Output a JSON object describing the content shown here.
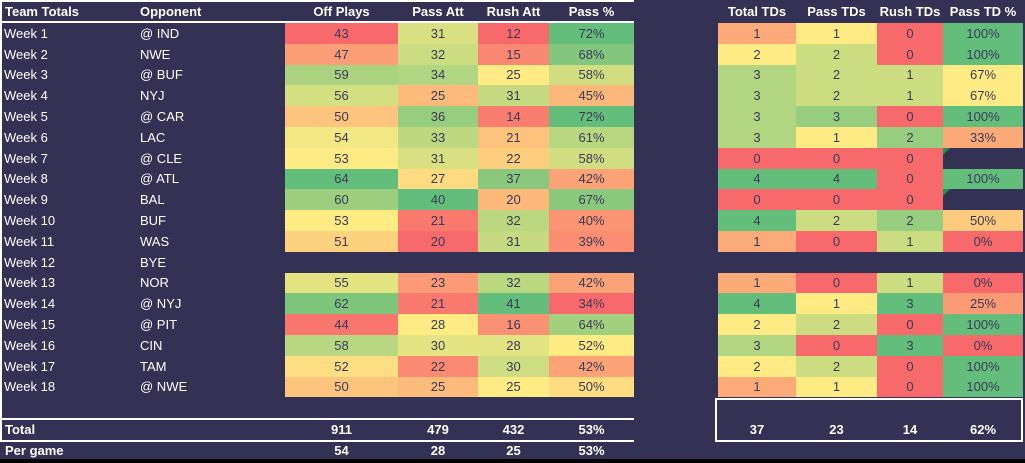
{
  "colors": {
    "background": "#333154",
    "scale_min_red": "#F8696B",
    "scale_mid_yellow": "#FFEB84",
    "scale_max_green": "#63BE7B",
    "cell_text": "#3A3A58",
    "header_text": "#FFFFFF",
    "table_border": "#FFFFFF",
    "error_flag_green": "#23934C",
    "bottom_bar": "#000000"
  },
  "left_table": {
    "header": {
      "week": "Team Totals",
      "opponent": "Opponent",
      "cols": [
        "Off Plays",
        "Pass Att",
        "Rush Att",
        "Pass %"
      ]
    },
    "formats": [
      "int",
      "int",
      "int",
      "pct"
    ],
    "rows": [
      {
        "week": "Week 1",
        "opponent": "@ IND",
        "values": [
          43,
          31,
          12,
          72
        ]
      },
      {
        "week": "Week 2",
        "opponent": "NWE",
        "values": [
          47,
          32,
          15,
          68
        ]
      },
      {
        "week": "Week 3",
        "opponent": "@ BUF",
        "values": [
          59,
          34,
          25,
          58
        ]
      },
      {
        "week": "Week 4",
        "opponent": "NYJ",
        "values": [
          56,
          25,
          31,
          45
        ]
      },
      {
        "week": "Week 5",
        "opponent": "@ CAR",
        "values": [
          50,
          36,
          14,
          72
        ]
      },
      {
        "week": "Week 6",
        "opponent": "LAC",
        "values": [
          54,
          33,
          21,
          61
        ]
      },
      {
        "week": "Week 7",
        "opponent": "@ CLE",
        "values": [
          53,
          31,
          22,
          58
        ]
      },
      {
        "week": "Week 8",
        "opponent": "@ ATL",
        "values": [
          64,
          27,
          37,
          42
        ]
      },
      {
        "week": "Week 9",
        "opponent": "BAL",
        "values": [
          60,
          40,
          20,
          67
        ]
      },
      {
        "week": "Week 10",
        "opponent": "BUF",
        "values": [
          53,
          21,
          32,
          40
        ]
      },
      {
        "week": "Week 11",
        "opponent": "WAS",
        "values": [
          51,
          20,
          31,
          39
        ]
      },
      {
        "week": "Week 12",
        "opponent": "BYE",
        "values": [
          null,
          null,
          null,
          null
        ]
      },
      {
        "week": "Week 13",
        "opponent": "NOR",
        "values": [
          55,
          23,
          32,
          42
        ]
      },
      {
        "week": "Week 14",
        "opponent": "@ NYJ",
        "values": [
          62,
          21,
          41,
          34
        ]
      },
      {
        "week": "Week 15",
        "opponent": "@ PIT",
        "values": [
          44,
          28,
          16,
          64
        ]
      },
      {
        "week": "Week 16",
        "opponent": "CIN",
        "values": [
          58,
          30,
          28,
          52
        ]
      },
      {
        "week": "Week 17",
        "opponent": "TAM",
        "values": [
          52,
          22,
          30,
          42
        ]
      },
      {
        "week": "Week 18",
        "opponent": "@ NWE",
        "values": [
          50,
          25,
          25,
          50
        ]
      }
    ],
    "total": {
      "label": "Total",
      "values": [
        911,
        479,
        432,
        53
      ]
    },
    "per_game": {
      "label": "Per game",
      "values": [
        54,
        28,
        25,
        53
      ]
    }
  },
  "right_table": {
    "header": {
      "cols": [
        "Total TDs",
        "Pass TDs",
        "Rush TDs",
        "Pass TD %"
      ]
    },
    "formats": [
      "int",
      "int",
      "int",
      "pct"
    ],
    "rows": [
      {
        "values": [
          1,
          1,
          0,
          100
        ]
      },
      {
        "values": [
          2,
          2,
          0,
          100
        ]
      },
      {
        "values": [
          3,
          2,
          1,
          67
        ]
      },
      {
        "values": [
          3,
          2,
          1,
          67
        ]
      },
      {
        "values": [
          3,
          3,
          0,
          100
        ]
      },
      {
        "values": [
          3,
          1,
          2,
          33
        ]
      },
      {
        "values": [
          0,
          0,
          0,
          null
        ],
        "error_cells": [
          3
        ]
      },
      {
        "values": [
          4,
          4,
          0,
          100
        ]
      },
      {
        "values": [
          0,
          0,
          0,
          null
        ],
        "error_cells": [
          3
        ]
      },
      {
        "values": [
          4,
          2,
          2,
          50
        ]
      },
      {
        "values": [
          1,
          0,
          1,
          0
        ]
      },
      {
        "values": [
          null,
          null,
          null,
          null
        ]
      },
      {
        "values": [
          1,
          0,
          1,
          0
        ]
      },
      {
        "values": [
          4,
          1,
          3,
          25
        ]
      },
      {
        "values": [
          2,
          2,
          0,
          100
        ]
      },
      {
        "values": [
          3,
          0,
          3,
          0
        ]
      },
      {
        "values": [
          2,
          2,
          0,
          100
        ]
      },
      {
        "values": [
          1,
          1,
          0,
          100
        ]
      }
    ],
    "total": {
      "values": [
        37,
        23,
        14,
        62
      ]
    }
  }
}
